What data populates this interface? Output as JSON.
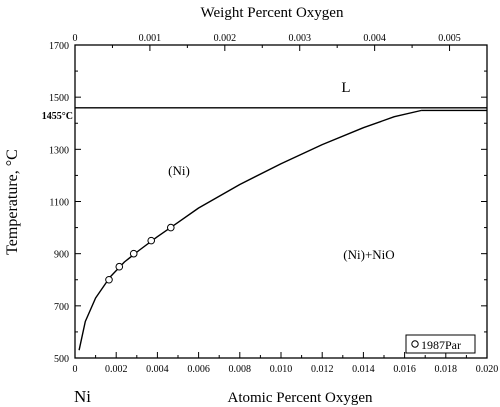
{
  "chart_data": {
    "type": "line",
    "xlabel": "Atomic Percent Oxygen",
    "x2label": "Weight Percent Oxygen",
    "ylabel": "Temperature, °C",
    "xlim": [
      0,
      0.02
    ],
    "x2lim": [
      0,
      0.0055
    ],
    "ylim": [
      500,
      1700
    ],
    "x_ticks": [
      0,
      0.002,
      0.004,
      0.006,
      0.008,
      0.01,
      0.012,
      0.014,
      0.016,
      0.018,
      0.02
    ],
    "x_tick_labels": [
      "0",
      "0.002",
      "0.004",
      "0.006",
      "0.008",
      "0.010",
      "0.012",
      "0.014",
      "0.016",
      "0.018",
      "0.020"
    ],
    "x2_ticks": [
      0,
      0.001,
      0.002,
      0.003,
      0.004,
      0.005
    ],
    "x2_tick_labels": [
      "0",
      "0.001",
      "0.002",
      "0.003",
      "0.004",
      "0.005"
    ],
    "y_ticks": [
      500,
      700,
      900,
      1100,
      1300,
      1500,
      1700
    ],
    "y_tick_labels": [
      "500",
      "700",
      "900",
      "1100",
      "1300",
      "1500",
      "1700"
    ],
    "special_y_label": {
      "value": 1455,
      "text": "1455°C"
    },
    "lines": [
      {
        "x": [
          0,
          0.02
        ],
        "y": [
          1459,
          1459
        ]
      },
      {
        "x": [
          0.0168,
          0.02
        ],
        "y": [
          1449,
          1449
        ]
      }
    ],
    "solvus": {
      "x": [
        0.0002,
        0.0005,
        0.001,
        0.0017,
        0.0024,
        0.0031,
        0.004,
        0.005,
        0.006,
        0.008,
        0.01,
        0.012,
        0.014,
        0.0155,
        0.0168
      ],
      "y": [
        530,
        640,
        730,
        810,
        868,
        912,
        965,
        1020,
        1075,
        1165,
        1245,
        1318,
        1383,
        1425,
        1449
      ]
    },
    "points": {
      "name": "1987Par",
      "x": [
        0.00165,
        0.00215,
        0.00285,
        0.0037,
        0.00465
      ],
      "y": [
        800,
        850,
        900,
        950,
        1000
      ]
    },
    "region_labels": [
      {
        "text": "L",
        "x": 0.0139,
        "y": 1577
      },
      {
        "text": "(Ni)",
        "x": 0.00505,
        "y": 1235
      },
      {
        "text": "(Ni)+NiO",
        "x": 0.0144,
        "y": 900
      }
    ],
    "element_label": "Ni",
    "legend": {
      "label": "1987Par",
      "position": "bottom-right"
    }
  }
}
